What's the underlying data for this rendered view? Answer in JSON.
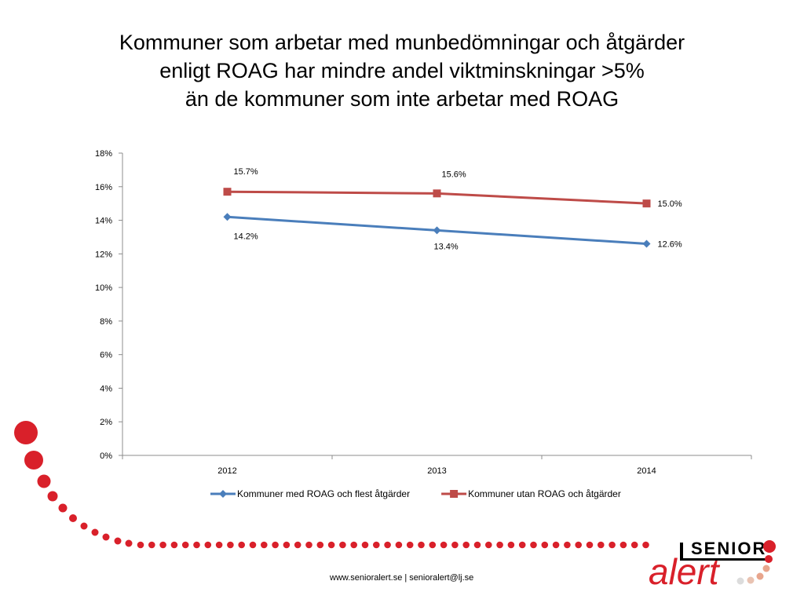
{
  "title_lines": [
    "Kommuner som arbetar med munbedömningar och åtgärder",
    "enligt ROAG har mindre andel viktminskningar >5%",
    "än de kommuner som inte arbetar med ROAG"
  ],
  "chart_data": {
    "type": "line",
    "categories": [
      "2012",
      "2013",
      "2014"
    ],
    "ylim": [
      0,
      18
    ],
    "yticks": [
      "0%",
      "2%",
      "4%",
      "6%",
      "8%",
      "10%",
      "12%",
      "14%",
      "16%",
      "18%"
    ],
    "series": [
      {
        "name": "Kommuner med ROAG och flest åtgärder",
        "values": [
          14.2,
          13.4,
          12.6
        ],
        "labels": [
          "14.2%",
          "13.4%",
          "12.6%"
        ],
        "color": "#4a7ebb",
        "marker": "diamond"
      },
      {
        "name": "Kommuner utan ROAG och åtgärder",
        "values": [
          15.7,
          15.6,
          15.0
        ],
        "labels": [
          "15.7%",
          "15.6%",
          "15.0%"
        ],
        "color": "#be4b48",
        "marker": "square"
      }
    ],
    "grid": false,
    "legend": "bottom"
  },
  "footer": {
    "website": "www.senioralert.se",
    "separator": "|",
    "email": "senioralert@lj.se"
  },
  "logo": {
    "word_top": "SENIOR",
    "word_bottom": "alert",
    "red": "#d9202a",
    "peach": "#e8a58c"
  },
  "decor": {
    "dot_color": "#d9202a"
  }
}
